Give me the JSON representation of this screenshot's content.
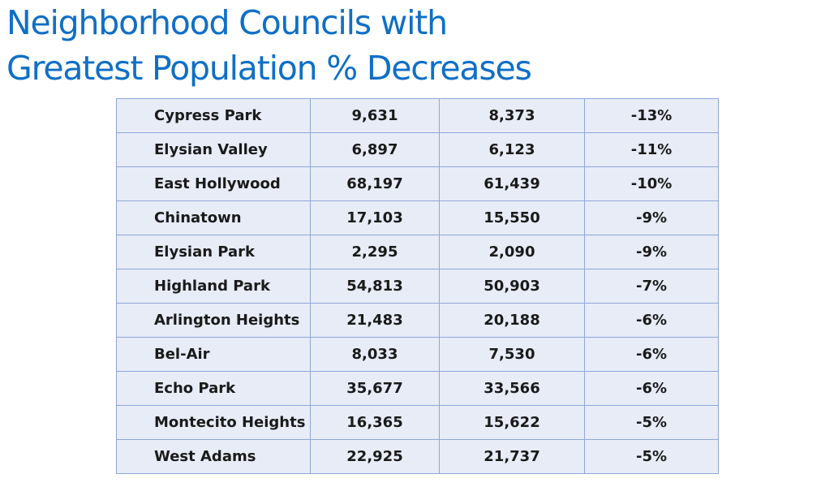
{
  "title": {
    "line1": "Neighborhood Councils with",
    "line2": "Greatest Population % Decreases"
  },
  "colors": {
    "title": "#0f6fc6",
    "cell_background": "#e7ecf7",
    "cell_border": "#8ea7d9",
    "cell_text": "#1a1a1a"
  },
  "table": {
    "rows": [
      {
        "name": "Cypress Park",
        "value_a": "9,631",
        "value_b": "8,373",
        "pct_change": "-13%"
      },
      {
        "name": "Elysian Valley",
        "value_a": "6,897",
        "value_b": "6,123",
        "pct_change": "-11%"
      },
      {
        "name": "East Hollywood",
        "value_a": "68,197",
        "value_b": "61,439",
        "pct_change": "-10%"
      },
      {
        "name": "Chinatown",
        "value_a": "17,103",
        "value_b": "15,550",
        "pct_change": "-9%"
      },
      {
        "name": "Elysian Park",
        "value_a": "2,295",
        "value_b": "2,090",
        "pct_change": "-9%"
      },
      {
        "name": "Highland Park",
        "value_a": "54,813",
        "value_b": "50,903",
        "pct_change": "-7%"
      },
      {
        "name": "Arlington Heights",
        "value_a": "21,483",
        "value_b": "20,188",
        "pct_change": "-6%"
      },
      {
        "name": "Bel-Air",
        "value_a": "8,033",
        "value_b": "7,530",
        "pct_change": "-6%"
      },
      {
        "name": "Echo Park",
        "value_a": "35,677",
        "value_b": "33,566",
        "pct_change": "-6%"
      },
      {
        "name": "Montecito Heights",
        "value_a": "16,365",
        "value_b": "15,622",
        "pct_change": "-5%"
      },
      {
        "name": "West Adams",
        "value_a": "22,925",
        "value_b": "21,737",
        "pct_change": "-5%"
      }
    ]
  }
}
